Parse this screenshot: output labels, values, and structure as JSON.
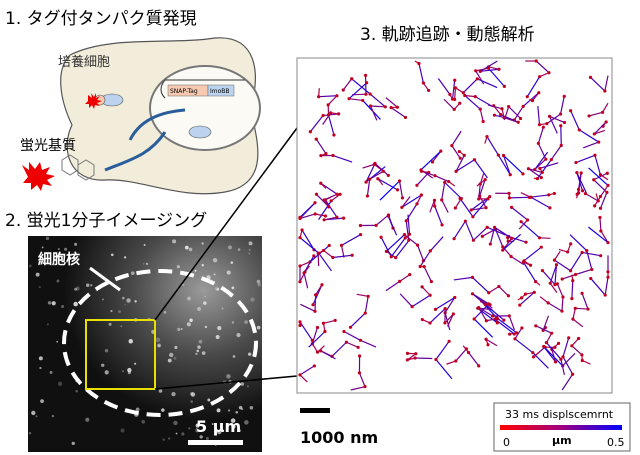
{
  "panel1": {
    "title": "1. タグ付タンパク質発現",
    "cell_label": "培養細胞",
    "construct_labels": [
      "SNAP-Tag",
      "ImoBB"
    ],
    "substrate_label": "蛍光基質"
  },
  "panel2": {
    "title": "2. 蛍光1分子イメージング",
    "nucleus_label": "細胞核",
    "scale_label": "5 µm"
  },
  "panel3": {
    "title": "3. 軌跡追跡・動態解析",
    "scale_label": "1000 nm",
    "colorbar": {
      "title": "33 ms displscemrnt",
      "min_label": "0",
      "unit_label": "µm",
      "max_label": "0.5"
    }
  }
}
